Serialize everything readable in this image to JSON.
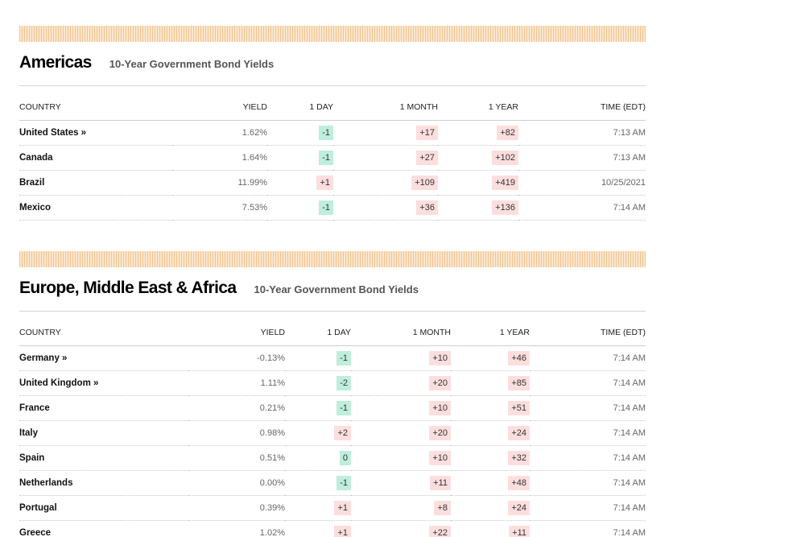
{
  "column_headers": {
    "country": "COUNTRY",
    "yield": "YIELD",
    "one_day": "1 DAY",
    "one_month": "1 MONTH",
    "one_year": "1 YEAR",
    "time": "TIME (EDT)"
  },
  "colors": {
    "positive_chip": "#fddede",
    "negative_chip": "#bfeedd",
    "stripe": "#fbe6cc"
  },
  "sections": [
    {
      "title": "Americas",
      "subtitle": "10-Year Government Bond Yields",
      "rows": [
        {
          "country": "United States »",
          "yield": "1.62%",
          "one_day": "-1",
          "one_month": "+17",
          "one_year": "+82",
          "time": "7:13 AM"
        },
        {
          "country": "Canada",
          "yield": "1.64%",
          "one_day": "-1",
          "one_month": "+27",
          "one_year": "+102",
          "time": "7:13 AM"
        },
        {
          "country": "Brazil",
          "yield": "11.99%",
          "one_day": "+1",
          "one_month": "+109",
          "one_year": "+419",
          "time": "10/25/2021"
        },
        {
          "country": "Mexico",
          "yield": "7.53%",
          "one_day": "-1",
          "one_month": "+36",
          "one_year": "+136",
          "time": "7:14 AM"
        }
      ]
    },
    {
      "title": "Europe, Middle East & Africa",
      "subtitle": "10-Year Government Bond Yields",
      "rows": [
        {
          "country": "Germany »",
          "yield": "-0.13%",
          "one_day": "-1",
          "one_month": "+10",
          "one_year": "+46",
          "time": "7:14 AM"
        },
        {
          "country": "United Kingdom »",
          "yield": "1.11%",
          "one_day": "-2",
          "one_month": "+20",
          "one_year": "+85",
          "time": "7:14 AM"
        },
        {
          "country": "France",
          "yield": "0.21%",
          "one_day": "-1",
          "one_month": "+10",
          "one_year": "+51",
          "time": "7:14 AM"
        },
        {
          "country": "Italy",
          "yield": "0.98%",
          "one_day": "+2",
          "one_month": "+20",
          "one_year": "+24",
          "time": "7:14 AM"
        },
        {
          "country": "Spain",
          "yield": "0.51%",
          "one_day": "0",
          "one_month": "+10",
          "one_year": "+32",
          "time": "7:14 AM"
        },
        {
          "country": "Netherlands",
          "yield": "0.00%",
          "one_day": "-1",
          "one_month": "+11",
          "one_year": "+48",
          "time": "7:14 AM"
        },
        {
          "country": "Portugal",
          "yield": "0.39%",
          "one_day": "+1",
          "one_month": "+8",
          "one_year": "+24",
          "time": "7:14 AM"
        },
        {
          "country": "Greece",
          "yield": "1.02%",
          "one_day": "+1",
          "one_month": "+22",
          "one_year": "+11",
          "time": "7:14 AM"
        }
      ]
    }
  ]
}
